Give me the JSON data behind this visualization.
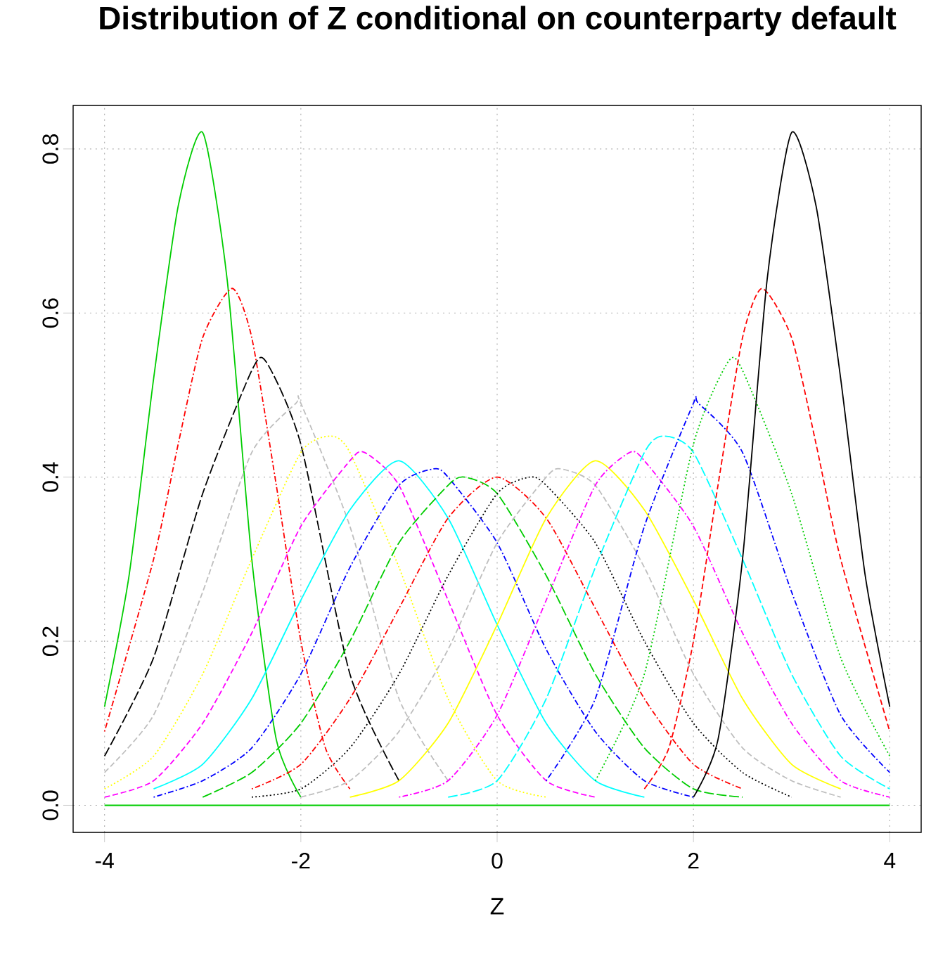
{
  "chart_data": {
    "type": "line",
    "title": "Distribution of Z conditional on counterparty default",
    "xlabel": "Z",
    "xlim": [
      -4.32,
      4.32
    ],
    "ylim": [
      -0.033,
      0.853
    ],
    "xticks": [
      -4,
      -2,
      0,
      2,
      4
    ],
    "yticks": [
      {
        "value": 0,
        "label": "0.0"
      },
      {
        "value": 0.2,
        "label": "0.2"
      },
      {
        "value": 0.4,
        "label": "0.4"
      },
      {
        "value": 0.6,
        "label": "0.6"
      },
      {
        "value": 0.8,
        "label": "0.8"
      }
    ],
    "grid": true,
    "marker": "none",
    "series": [
      {
        "color": "#00cd00",
        "line_style": "solid",
        "x": [
          -4,
          -3.75,
          -3.5,
          -3.25,
          -3,
          -2.75,
          -2.5,
          -2.25,
          -2
        ],
        "values": [
          0.12,
          0.28,
          0.52,
          0.73,
          0.82,
          0.64,
          0.3,
          0.08,
          0.01
        ]
      },
      {
        "color": "#ff0000",
        "line_style": "dashdot",
        "x": [
          -4,
          -3.5,
          -3.25,
          -3,
          -2.7,
          -2.5,
          -2.25,
          -2,
          -1.75,
          -1.5
        ],
        "values": [
          0.09,
          0.3,
          0.44,
          0.57,
          0.63,
          0.57,
          0.39,
          0.2,
          0.07,
          0.02
        ]
      },
      {
        "color": "#000000",
        "line_style": "longdash",
        "x": [
          -4,
          -3.5,
          -3,
          -2.5,
          -2.35,
          -2,
          -1.5,
          -1
        ],
        "values": [
          0.06,
          0.18,
          0.38,
          0.53,
          0.54,
          0.44,
          0.16,
          0.03
        ]
      },
      {
        "color": "#bebebe",
        "line_style": "dashed",
        "x": [
          -4,
          -3.5,
          -3,
          -2.5,
          -2.05,
          -2,
          -1.5,
          -1,
          -0.5
        ],
        "values": [
          0.04,
          0.11,
          0.26,
          0.43,
          0.49,
          0.49,
          0.34,
          0.13,
          0.03
        ]
      },
      {
        "color": "#ffff00",
        "line_style": "dotted",
        "x": [
          -4,
          -3.5,
          -3,
          -2.5,
          -2,
          -1.7,
          -1.5,
          -1,
          -0.5,
          0,
          0.5
        ],
        "values": [
          0.02,
          0.06,
          0.16,
          0.3,
          0.43,
          0.45,
          0.43,
          0.29,
          0.13,
          0.03,
          0.01
        ]
      },
      {
        "color": "#ff00ff",
        "line_style": "dashed",
        "x": [
          -4,
          -3.5,
          -3,
          -2.5,
          -2,
          -1.5,
          -1.35,
          -1,
          -0.5,
          0,
          0.5,
          1
        ],
        "values": [
          0.01,
          0.03,
          0.1,
          0.21,
          0.34,
          0.42,
          0.43,
          0.39,
          0.25,
          0.11,
          0.03,
          0.01
        ]
      },
      {
        "color": "#00ffff",
        "line_style": "solid",
        "x": [
          -3.5,
          -3,
          -2.5,
          -2,
          -1.5,
          -1,
          -0.5,
          0,
          0.5,
          1,
          1.5
        ],
        "values": [
          0.02,
          0.05,
          0.13,
          0.25,
          0.36,
          0.42,
          0.35,
          0.22,
          0.1,
          0.03,
          0.01
        ]
      },
      {
        "color": "#0000ff",
        "line_style": "dashdot",
        "x": [
          -3.5,
          -3,
          -2.5,
          -2,
          -1.5,
          -1,
          -0.65,
          -0.5,
          0,
          0.5,
          1,
          1.5,
          2
        ],
        "values": [
          0.01,
          0.03,
          0.07,
          0.16,
          0.29,
          0.39,
          0.41,
          0.4,
          0.32,
          0.19,
          0.09,
          0.03,
          0.01
        ]
      },
      {
        "color": "#00cd00",
        "line_style": "longdash",
        "x": [
          -3,
          -2.5,
          -2,
          -1.5,
          -1,
          -0.5,
          -0.33,
          0,
          0.5,
          1,
          1.5,
          2,
          2.5
        ],
        "values": [
          0.01,
          0.04,
          0.1,
          0.2,
          0.32,
          0.39,
          0.4,
          0.38,
          0.28,
          0.16,
          0.07,
          0.02,
          0.01
        ]
      },
      {
        "color": "#ff0000",
        "line_style": "dashdot",
        "x": [
          -2.5,
          -2,
          -1.5,
          -1,
          -0.5,
          0,
          0.5,
          1,
          1.5,
          2,
          2.5
        ],
        "values": [
          0.02,
          0.05,
          0.13,
          0.24,
          0.35,
          0.4,
          0.35,
          0.24,
          0.13,
          0.05,
          0.02
        ]
      },
      {
        "color": "#000000",
        "line_style": "dotted",
        "x": [
          -2.5,
          -2,
          -1.5,
          -1,
          -0.5,
          0,
          0.33,
          0.5,
          1,
          1.5,
          2,
          2.5,
          3
        ],
        "values": [
          0.01,
          0.02,
          0.07,
          0.16,
          0.28,
          0.38,
          0.4,
          0.39,
          0.32,
          0.2,
          0.1,
          0.04,
          0.01
        ]
      },
      {
        "color": "#bebebe",
        "line_style": "dashed",
        "x": [
          -2,
          -1.5,
          -1,
          -0.5,
          0,
          0.5,
          0.65,
          1,
          1.5,
          2,
          2.5,
          3,
          3.5
        ],
        "values": [
          0.01,
          0.03,
          0.09,
          0.19,
          0.32,
          0.4,
          0.41,
          0.39,
          0.29,
          0.16,
          0.07,
          0.03,
          0.01
        ]
      },
      {
        "color": "#ffff00",
        "line_style": "solid",
        "x": [
          -1.5,
          -1,
          -0.5,
          0,
          0.5,
          1,
          1.5,
          2,
          2.5,
          3,
          3.5
        ],
        "values": [
          0.01,
          0.03,
          0.1,
          0.22,
          0.35,
          0.42,
          0.36,
          0.25,
          0.13,
          0.05,
          0.02
        ]
      },
      {
        "color": "#ff00ff",
        "line_style": "dashdot",
        "x": [
          -1,
          -0.5,
          0,
          0.5,
          1,
          1.35,
          1.5,
          2,
          2.5,
          3,
          3.5,
          4
        ],
        "values": [
          0.01,
          0.03,
          0.11,
          0.25,
          0.39,
          0.43,
          0.42,
          0.34,
          0.21,
          0.1,
          0.03,
          0.01
        ]
      },
      {
        "color": "#00ffff",
        "line_style": "longdash",
        "x": [
          -0.5,
          0,
          0.5,
          1,
          1.5,
          1.7,
          2,
          2.5,
          3,
          3.5,
          4
        ],
        "values": [
          0.01,
          0.03,
          0.13,
          0.29,
          0.43,
          0.45,
          0.43,
          0.3,
          0.16,
          0.06,
          0.02
        ]
      },
      {
        "color": "#0000ff",
        "line_style": "dashdot",
        "x": [
          0.5,
          1,
          1.5,
          2,
          2.05,
          2.5,
          3,
          3.5,
          4
        ],
        "values": [
          0.03,
          0.13,
          0.34,
          0.49,
          0.49,
          0.43,
          0.26,
          0.11,
          0.04
        ]
      },
      {
        "color": "#00cd00",
        "line_style": "dotted",
        "x": [
          1,
          1.5,
          2,
          2.35,
          2.5,
          3,
          3.5,
          4
        ],
        "values": [
          0.03,
          0.16,
          0.44,
          0.54,
          0.53,
          0.38,
          0.18,
          0.06
        ]
      },
      {
        "color": "#ff0000",
        "line_style": "dashed",
        "x": [
          1.5,
          1.75,
          2,
          2.25,
          2.5,
          2.7,
          3,
          3.25,
          3.5,
          4
        ],
        "values": [
          0.02,
          0.07,
          0.2,
          0.39,
          0.57,
          0.63,
          0.57,
          0.44,
          0.3,
          0.09
        ]
      },
      {
        "color": "#000000",
        "line_style": "solid",
        "x": [
          2,
          2.25,
          2.5,
          2.75,
          3,
          3.25,
          3.5,
          3.75,
          4
        ],
        "values": [
          0.01,
          0.08,
          0.3,
          0.64,
          0.82,
          0.73,
          0.52,
          0.28,
          0.12
        ]
      },
      {
        "color": "#00cd00",
        "line_style": "solid",
        "x": [
          -4,
          4
        ],
        "values": [
          0,
          0
        ]
      }
    ]
  }
}
